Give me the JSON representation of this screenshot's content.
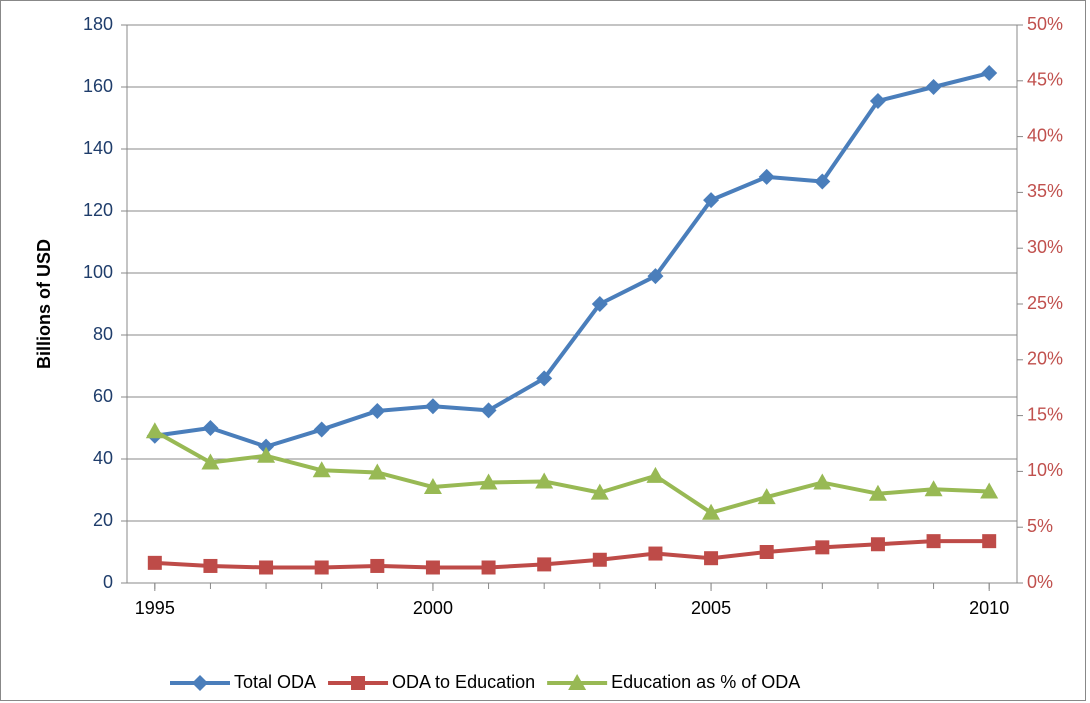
{
  "chart_data": {
    "type": "line",
    "y_axis_label": "Billions of USD",
    "x": [
      1995,
      1996,
      1997,
      1998,
      1999,
      2000,
      2001,
      2002,
      2003,
      2004,
      2005,
      2006,
      2007,
      2008,
      2009,
      2010
    ],
    "xlim": [
      1994.5,
      2010.5
    ],
    "xticks": [
      1995,
      2000,
      2005,
      2010
    ],
    "ylim": [
      0,
      180
    ],
    "yticks": [
      0,
      20,
      40,
      60,
      80,
      100,
      120,
      140,
      160,
      180
    ],
    "y2lim": [
      0,
      50
    ],
    "y2ticks": [
      {
        "value": 0,
        "label": "0%"
      },
      {
        "value": 5,
        "label": "5%"
      },
      {
        "value": 10,
        "label": "10%"
      },
      {
        "value": 15,
        "label": "15%"
      },
      {
        "value": 20,
        "label": "20%"
      },
      {
        "value": 25,
        "label": "25%"
      },
      {
        "value": 30,
        "label": "30%"
      },
      {
        "value": 35,
        "label": "35%"
      },
      {
        "value": 40,
        "label": "40%"
      },
      {
        "value": 45,
        "label": "45%"
      },
      {
        "value": 50,
        "label": "50%"
      }
    ],
    "grid": true,
    "legend": "bottom",
    "series": [
      {
        "name": "Total ODA",
        "color": "#4a7ebb",
        "marker": "diamond",
        "values": [
          47.5,
          50,
          44,
          49.5,
          55.5,
          57,
          55.7,
          66,
          90,
          99,
          123.5,
          131,
          129.5,
          155.5,
          160,
          164.5
        ]
      },
      {
        "name": "ODA to Education",
        "color": "#be4b48",
        "marker": "square",
        "values": [
          6.5,
          5.5,
          5,
          5,
          5.5,
          5,
          5,
          6,
          7.5,
          9.5,
          8,
          10,
          11.5,
          12.5,
          13.5,
          13.5
        ]
      },
      {
        "name": "Education as % of ODA",
        "color": "#98b954",
        "marker": "triangle",
        "axis": "y2",
        "values": [
          13.6,
          10.8,
          11.4,
          10.1,
          9.9,
          8.6,
          9.0,
          9.1,
          8.1,
          9.6,
          6.3,
          7.7,
          9.0,
          8.0,
          8.4,
          8.2
        ]
      }
    ]
  }
}
